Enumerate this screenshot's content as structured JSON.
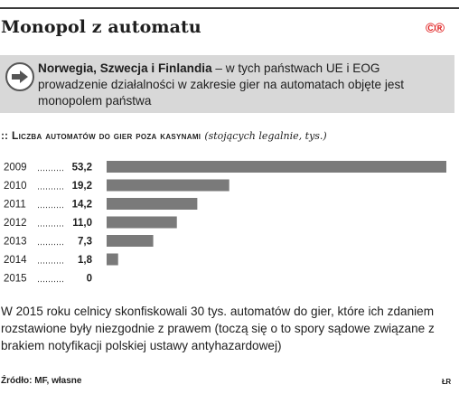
{
  "headline": "Monopol z automatu",
  "badge": "©®",
  "callout": {
    "bold": "Norwegia, Szwecja i Finlandia",
    "rest": " – w tych państwach UE i EOG prowadzenie działalności w zakresie gier na automatach objęte jest monopolem państwa",
    "icon": "arrow-right-circle-icon"
  },
  "chart_title": {
    "marker": "::",
    "main": "Liczba automatów do gier poza kasynami",
    "note": "(stojących legalnie, tys.)"
  },
  "chart_data": {
    "type": "bar",
    "orientation": "horizontal",
    "title": "Liczba automatów do gier poza kasynami (stojących legalnie, tys.)",
    "categories": [
      "2009",
      "2010",
      "2011",
      "2012",
      "2013",
      "2014",
      "2015"
    ],
    "values": [
      53.2,
      19.2,
      14.2,
      11.0,
      7.3,
      1.8,
      0
    ],
    "value_labels": [
      "53,2",
      "19,2",
      "14,2",
      "11,0",
      "7,3",
      "1,8",
      "0"
    ],
    "xlim": [
      0,
      53.2
    ],
    "bar_color": "#7a7a7a",
    "grid": false
  },
  "body_text": "W 2015 roku celnicy skonfiskowali 30 tys. automatów do gier, które ich zdaniem rozstawione były niezgodnie z prawem (toczą się o to spory sądowe związane z brakiem notyfikacji polskiej ustawy antyhazardowej)",
  "source": "Źródło: MF, własne",
  "logo": "ŁR"
}
